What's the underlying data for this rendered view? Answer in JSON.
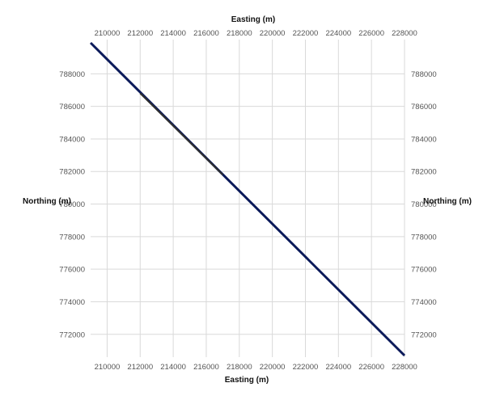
{
  "colors": {
    "background": "#ffffff",
    "grid": "#d9d9d9",
    "line_primary": "#0b1a5a",
    "line_secondary": "#2f2f2f",
    "tick_text": "#555555",
    "title_text": "#111111"
  },
  "chart_data": {
    "type": "line",
    "title": "",
    "xlabel_top": "Easting (m)",
    "xlabel_bottom": "Easting (m)",
    "ylabel_left": "Northing (m)",
    "ylabel_right": "Northing (m)",
    "xlim": [
      209000,
      228000
    ],
    "ylim": [
      770600,
      790100
    ],
    "xticks": [
      210000,
      212000,
      214000,
      216000,
      218000,
      220000,
      222000,
      224000,
      226000,
      228000
    ],
    "yticks": [
      772000,
      774000,
      776000,
      778000,
      780000,
      782000,
      784000,
      786000,
      788000
    ],
    "grid": true,
    "series": [
      {
        "x": [
          209000,
          228000
        ],
        "y": [
          789900,
          770700
        ]
      },
      {
        "x": [
          212000,
          217000
        ],
        "y": [
          786800,
          781800
        ]
      }
    ]
  }
}
